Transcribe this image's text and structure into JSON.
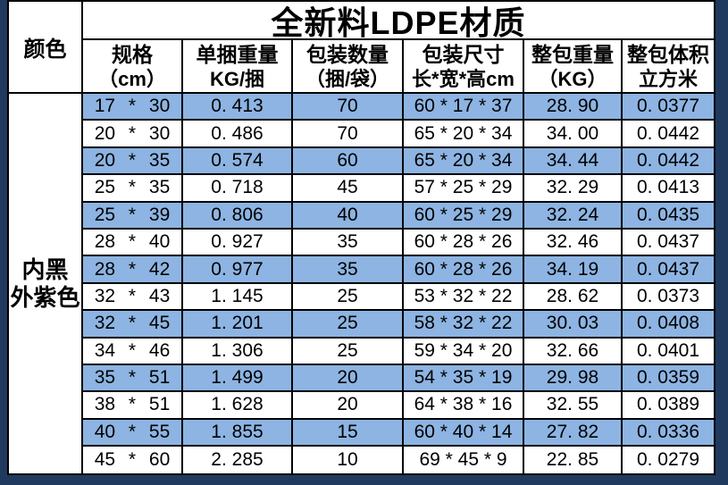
{
  "page": {
    "frame_color": "#1f3a5e",
    "highlight_color": "#8db4e2",
    "grid_color": "#000000"
  },
  "table": {
    "title": "全新料LDPE材质",
    "color_header": "颜色",
    "color_label_lines": [
      "内黑",
      "外紫色"
    ],
    "columns": [
      {
        "line1": "规格",
        "line2": "（cm）"
      },
      {
        "line1": "单捆重量",
        "line2": "KG/捆"
      },
      {
        "line1": "包装数量",
        "line2": "（捆/袋）"
      },
      {
        "line1": "包装尺寸",
        "line2": "长*宽*高cm"
      },
      {
        "line1": "整包重量",
        "line2": "（KG）"
      },
      {
        "line1": "整包体积",
        "line2": "立方米"
      }
    ],
    "rows": [
      {
        "spec": "17 * 30",
        "bundle_weight": "0. 413",
        "qty": "70",
        "dims": "60 * 17 * 37",
        "pack_weight": "28. 90",
        "volume": "0. 0377",
        "highlight": true
      },
      {
        "spec": "20 * 30",
        "bundle_weight": "0. 486",
        "qty": "70",
        "dims": "65 * 20 * 34",
        "pack_weight": "34. 00",
        "volume": "0. 0442",
        "highlight": false
      },
      {
        "spec": "20 * 35",
        "bundle_weight": "0. 574",
        "qty": "60",
        "dims": "65 * 20 * 34",
        "pack_weight": "34. 44",
        "volume": "0. 0442",
        "highlight": true
      },
      {
        "spec": "25 * 35",
        "bundle_weight": "0. 718",
        "qty": "45",
        "dims": "57 * 25 * 29",
        "pack_weight": "32. 29",
        "volume": "0. 0413",
        "highlight": false
      },
      {
        "spec": "25 * 39",
        "bundle_weight": "0. 806",
        "qty": "40",
        "dims": "60 * 25 * 29",
        "pack_weight": "32. 24",
        "volume": "0. 0435",
        "highlight": true
      },
      {
        "spec": "28 * 40",
        "bundle_weight": "0. 927",
        "qty": "35",
        "dims": "60 * 28 * 26",
        "pack_weight": "32. 46",
        "volume": "0. 0437",
        "highlight": false
      },
      {
        "spec": "28 * 42",
        "bundle_weight": "0. 977",
        "qty": "35",
        "dims": "60 * 28 * 26",
        "pack_weight": "34. 19",
        "volume": "0. 0437",
        "highlight": true
      },
      {
        "spec": "32 * 43",
        "bundle_weight": "1. 145",
        "qty": "25",
        "dims": "53 * 32 * 22",
        "pack_weight": "28. 62",
        "volume": "0. 0373",
        "highlight": false
      },
      {
        "spec": "32 * 45",
        "bundle_weight": "1. 201",
        "qty": "25",
        "dims": "58 * 32 * 22",
        "pack_weight": "30. 03",
        "volume": "0. 0408",
        "highlight": true
      },
      {
        "spec": "34 * 46",
        "bundle_weight": "1. 306",
        "qty": "25",
        "dims": "59 * 34 * 20",
        "pack_weight": "32. 66",
        "volume": "0. 0401",
        "highlight": false
      },
      {
        "spec": "35 * 51",
        "bundle_weight": "1. 499",
        "qty": "20",
        "dims": "54 * 35 * 19",
        "pack_weight": "29. 98",
        "volume": "0. 0359",
        "highlight": true
      },
      {
        "spec": "38 * 51",
        "bundle_weight": "1. 628",
        "qty": "20",
        "dims": "64 * 38 * 16",
        "pack_weight": "32. 55",
        "volume": "0. 0389",
        "highlight": false
      },
      {
        "spec": "40 * 55",
        "bundle_weight": "1. 855",
        "qty": "15",
        "dims": "60 * 40 * 14",
        "pack_weight": "27. 82",
        "volume": "0. 0336",
        "highlight": true
      },
      {
        "spec": "45 * 60",
        "bundle_weight": "2. 285",
        "qty": "10",
        "dims": "69 * 45 *  9",
        "pack_weight": "22. 85",
        "volume": "0. 0279",
        "highlight": false
      }
    ]
  }
}
